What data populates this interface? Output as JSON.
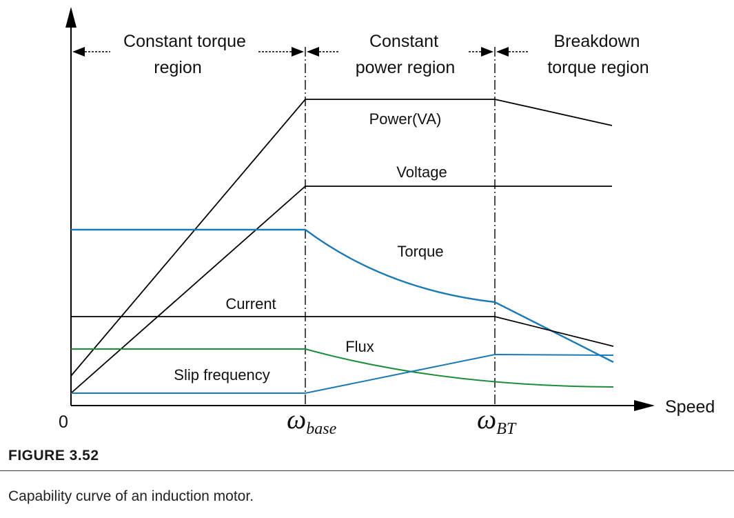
{
  "chart_data": {
    "type": "line",
    "regions": [
      {
        "label_line1": "Constant torque",
        "label_line2": "region"
      },
      {
        "label_line1": "Constant",
        "label_line2": "power region"
      },
      {
        "label_line1": "Breakdown",
        "label_line2": "torque region"
      }
    ],
    "x_axis": {
      "label": "Speed",
      "origin_label": "0"
    },
    "markers": {
      "base": {
        "symbol": "ω",
        "subscript": "base"
      },
      "bt": {
        "symbol": "ω",
        "subscript": "BT"
      }
    },
    "curves": [
      {
        "name": "Power(VA)",
        "color": "#000000"
      },
      {
        "name": "Voltage",
        "color": "#000000"
      },
      {
        "name": "Torque",
        "color": "#1a7ab3"
      },
      {
        "name": "Current",
        "color": "#000000"
      },
      {
        "name": "Flux",
        "color": "#1a8c3a"
      },
      {
        "name": "Slip frequency",
        "color": "#1a7ab3"
      }
    ]
  },
  "caption": {
    "figure_number": "FIGURE 3.52",
    "text": "Capability curve of an induction motor."
  }
}
